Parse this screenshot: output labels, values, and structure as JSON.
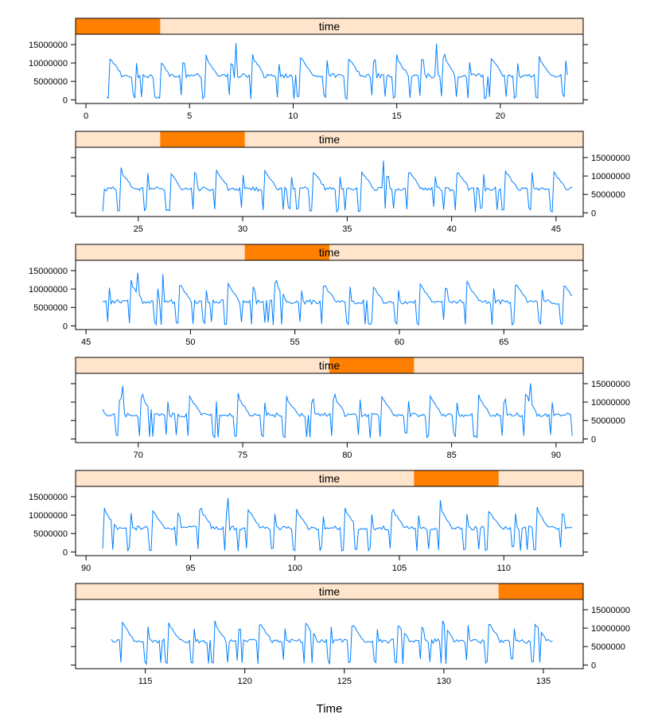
{
  "chart_data": {
    "type": "line",
    "strip_label": "time",
    "xlabel": "Time",
    "ylabel": "",
    "y_ticks": [
      0,
      5000000,
      10000000,
      15000000
    ],
    "ylim": [
      -1000000,
      17800000
    ],
    "line_color": "#0080ff",
    "strip_color": "#ffe5cc",
    "strip_highlight_color": "#ff7f00",
    "panels": [
      {
        "xlim": [
          -0.5,
          24.0
        ],
        "x_ticks": [
          0,
          5,
          10,
          15,
          20
        ],
        "x_tick_labels": [
          "0",
          "5",
          "10",
          "15",
          "20"
        ],
        "data_range": [
          1.0,
          23.3
        ],
        "shade": [
          0.0,
          0.1667
        ],
        "y_axis_side": "left",
        "x_axis_side": "bottom"
      },
      {
        "xlim": [
          22.0,
          46.3
        ],
        "x_ticks": [
          25,
          30,
          35,
          40,
          45
        ],
        "x_tick_labels": [
          "25",
          "30",
          "35",
          "40",
          "45"
        ],
        "data_range": [
          23.3,
          45.8
        ],
        "shade": [
          0.1667,
          0.3333
        ],
        "y_axis_side": "right",
        "x_axis_side": "bottom"
      },
      {
        "xlim": [
          44.5,
          68.8
        ],
        "x_ticks": [
          45,
          50,
          55,
          60,
          65
        ],
        "x_tick_labels": [
          "45",
          "50",
          "55",
          "60",
          "65"
        ],
        "data_range": [
          45.8,
          68.3
        ],
        "shade": [
          0.3333,
          0.5
        ],
        "y_axis_side": "left",
        "x_axis_side": "bottom"
      },
      {
        "xlim": [
          67.0,
          91.3
        ],
        "x_ticks": [
          70,
          75,
          80,
          85,
          90
        ],
        "x_tick_labels": [
          "70",
          "75",
          "80",
          "85",
          "90"
        ],
        "data_range": [
          68.3,
          90.8
        ],
        "shade": [
          0.5,
          0.6667
        ],
        "y_axis_side": "right",
        "x_axis_side": "bottom"
      },
      {
        "xlim": [
          89.5,
          113.8
        ],
        "x_ticks": [
          90,
          95,
          100,
          105,
          110
        ],
        "x_tick_labels": [
          "90",
          "95",
          "100",
          "105",
          "110"
        ],
        "data_range": [
          90.8,
          113.3
        ],
        "shade": [
          0.6667,
          0.8333
        ],
        "y_axis_side": "left",
        "x_axis_side": "bottom"
      },
      {
        "xlim": [
          111.5,
          137.0
        ],
        "x_ticks": [
          115,
          120,
          125,
          130,
          135
        ],
        "x_tick_labels": [
          "115",
          "120",
          "125",
          "130",
          "135"
        ],
        "data_range": [
          113.3,
          135.5
        ],
        "shade": [
          0.8333,
          1.0
        ],
        "y_axis_side": "right",
        "x_axis_side": "bottom"
      }
    ],
    "series_pattern": {
      "description": "weekly cycle: repeating baseline ~6.5M with dips to ~0 and peaks ~10M",
      "period": 2.3,
      "baseline": 6500000,
      "peak": 10500000,
      "trough": 200000,
      "max_peak": 15500000
    }
  }
}
